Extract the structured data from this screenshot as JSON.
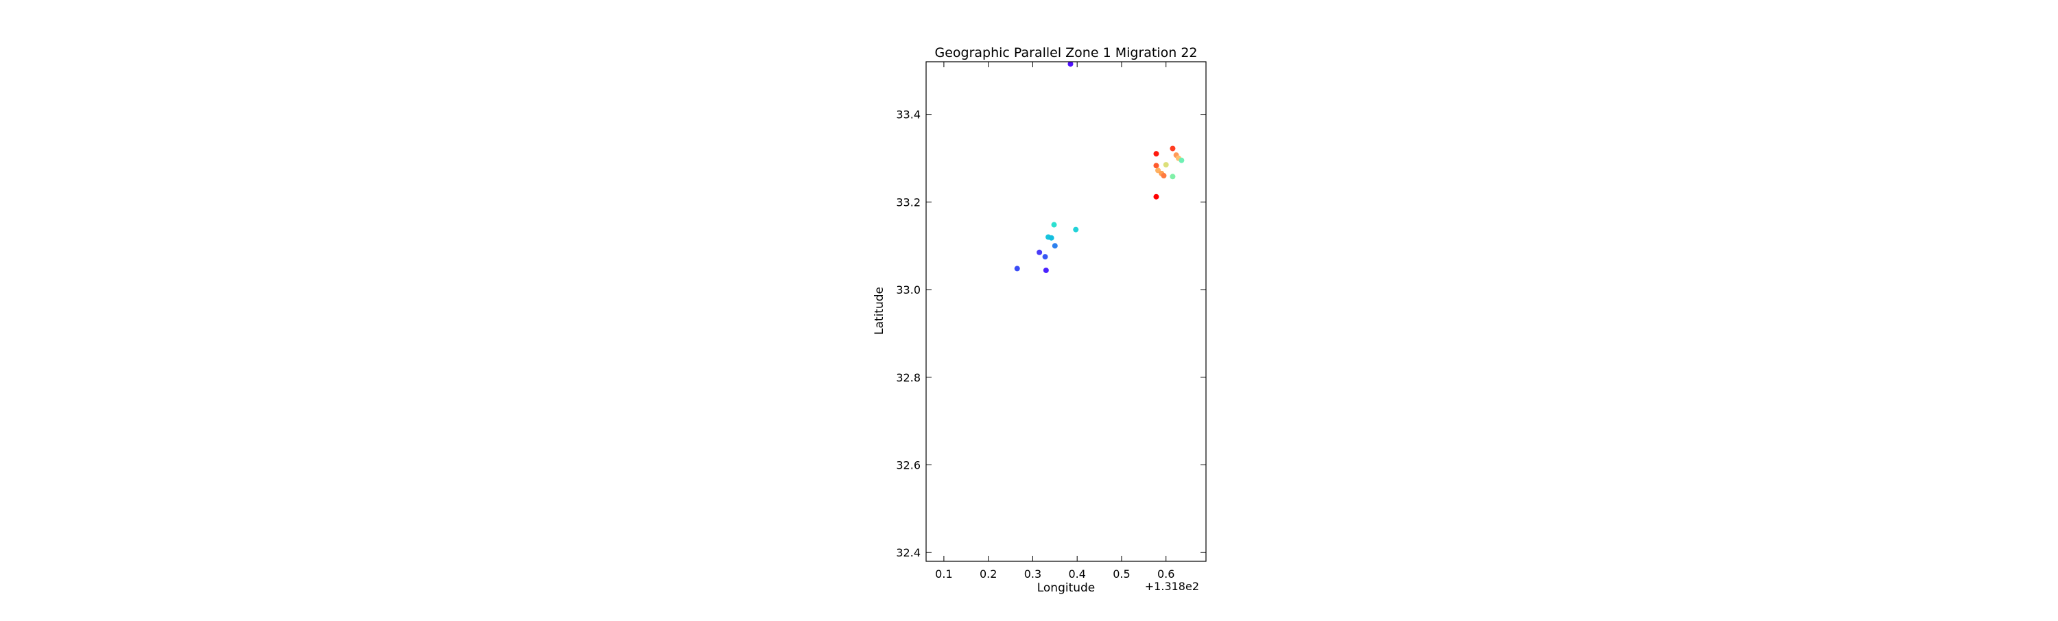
{
  "chart_data": {
    "type": "scatter",
    "title": "Geographic Parallel Zone 1 Migration 22",
    "xlabel": "Longitude",
    "ylabel": "Latitude",
    "axis_offset_text": "+1.318e2",
    "xlim": [
      0.06,
      0.69
    ],
    "ylim": [
      32.38,
      33.52
    ],
    "xticks": [
      0.1,
      0.2,
      0.3,
      0.4,
      0.5,
      0.6
    ],
    "xtick_labels": [
      "0.1",
      "0.2",
      "0.3",
      "0.4",
      "0.5",
      "0.6"
    ],
    "yticks": [
      32.4,
      32.6,
      32.8,
      33.0,
      33.2,
      33.4
    ],
    "ytick_labels": [
      "32.4",
      "32.6",
      "32.8",
      "33.0",
      "33.2",
      "33.4"
    ],
    "grid": false,
    "legend": "none",
    "colormap": "rainbow",
    "points": [
      {
        "x": 0.385,
        "y": 33.515,
        "color": "#5010ff"
      },
      {
        "x": 0.265,
        "y": 33.048,
        "color": "#3a4cf6"
      },
      {
        "x": 0.33,
        "y": 33.044,
        "color": "#4a22ff"
      },
      {
        "x": 0.315,
        "y": 33.085,
        "color": "#4a3cf8"
      },
      {
        "x": 0.328,
        "y": 33.075,
        "color": "#3858f4"
      },
      {
        "x": 0.35,
        "y": 33.1,
        "color": "#2c80ee"
      },
      {
        "x": 0.335,
        "y": 33.12,
        "color": "#18c4dc"
      },
      {
        "x": 0.342,
        "y": 33.118,
        "color": "#14bedf"
      },
      {
        "x": 0.348,
        "y": 33.148,
        "color": "#2ce0d0"
      },
      {
        "x": 0.397,
        "y": 33.137,
        "color": "#22d2d8"
      },
      {
        "x": 0.578,
        "y": 33.31,
        "color": "#ff1a0e"
      },
      {
        "x": 0.578,
        "y": 33.212,
        "color": "#ff0000"
      },
      {
        "x": 0.578,
        "y": 33.283,
        "color": "#ff5a2c"
      },
      {
        "x": 0.582,
        "y": 33.272,
        "color": "#ffb060"
      },
      {
        "x": 0.59,
        "y": 33.265,
        "color": "#ffa050"
      },
      {
        "x": 0.595,
        "y": 33.26,
        "color": "#ff7a40"
      },
      {
        "x": 0.6,
        "y": 33.285,
        "color": "#dce07a"
      },
      {
        "x": 0.615,
        "y": 33.322,
        "color": "#ff3c20"
      },
      {
        "x": 0.615,
        "y": 33.258,
        "color": "#80f0a8"
      },
      {
        "x": 0.623,
        "y": 33.307,
        "color": "#ff9a58"
      },
      {
        "x": 0.628,
        "y": 33.3,
        "color": "#ffc070"
      },
      {
        "x": 0.635,
        "y": 33.295,
        "color": "#6ef0b4"
      }
    ]
  }
}
